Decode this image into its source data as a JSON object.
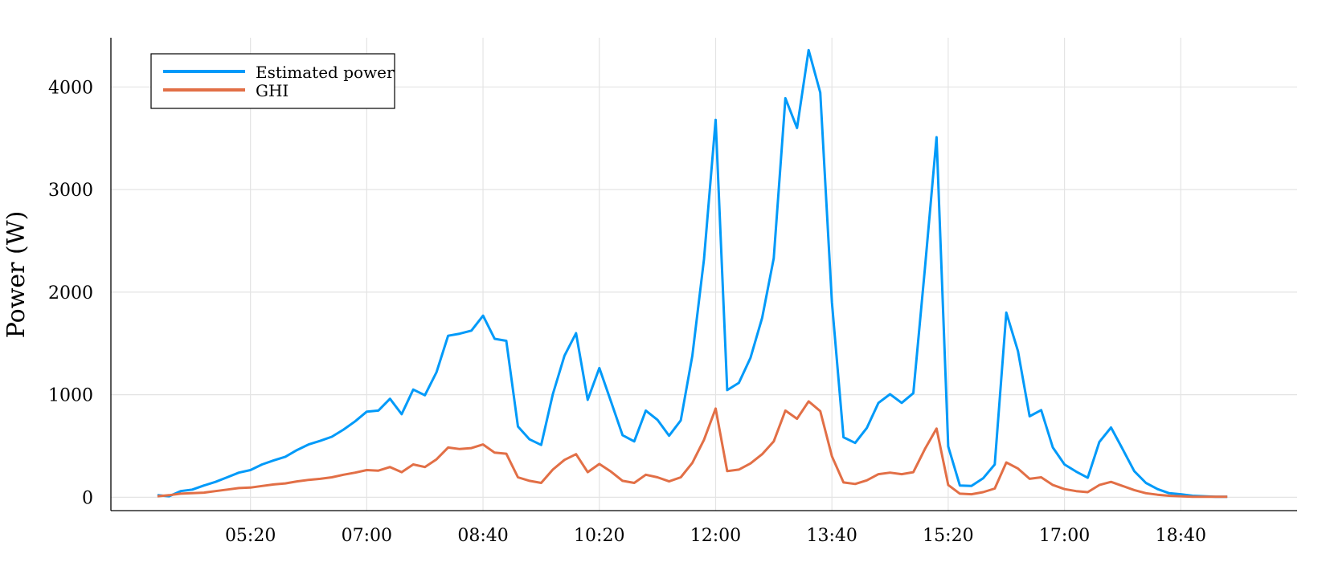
{
  "chart_data": {
    "type": "line",
    "title": "",
    "xlabel": "",
    "ylabel": "Power (W)",
    "ylim": [
      -130,
      4480
    ],
    "xlim": [
      "03:20",
      "20:20"
    ],
    "grid": true,
    "legend_position": "top-left",
    "xticks": [
      "05:20",
      "07:00",
      "08:40",
      "10:20",
      "12:00",
      "13:40",
      "15:20",
      "17:00",
      "18:40"
    ],
    "yticks": [
      0,
      1000,
      2000,
      3000,
      4000
    ],
    "x": [
      "04:00",
      "04:10",
      "04:20",
      "04:30",
      "04:40",
      "04:50",
      "05:00",
      "05:10",
      "05:20",
      "05:30",
      "05:40",
      "05:50",
      "06:00",
      "06:10",
      "06:20",
      "06:30",
      "06:40",
      "06:50",
      "07:00",
      "07:10",
      "07:20",
      "07:30",
      "07:40",
      "07:50",
      "08:00",
      "08:10",
      "08:20",
      "08:30",
      "08:40",
      "08:50",
      "09:00",
      "09:10",
      "09:20",
      "09:30",
      "09:40",
      "09:50",
      "10:00",
      "10:10",
      "10:20",
      "10:30",
      "10:40",
      "10:50",
      "11:00",
      "11:10",
      "11:20",
      "11:30",
      "11:40",
      "11:50",
      "12:00",
      "12:10",
      "12:20",
      "12:30",
      "12:40",
      "12:50",
      "13:00",
      "13:10",
      "13:20",
      "13:30",
      "13:40",
      "13:50",
      "14:00",
      "14:10",
      "14:20",
      "14:30",
      "14:40",
      "14:50",
      "15:00",
      "15:10",
      "15:20",
      "15:30",
      "15:40",
      "15:50",
      "16:00",
      "16:10",
      "16:20",
      "16:30",
      "16:40",
      "16:50",
      "17:00",
      "17:10",
      "17:20",
      "17:30",
      "17:40",
      "17:50",
      "18:00",
      "18:10",
      "18:20",
      "18:30",
      "18:40",
      "18:50",
      "19:00",
      "19:10",
      "19:20"
    ],
    "series": [
      {
        "name": "Estimated power",
        "color": "#009af9",
        "values": [
          20,
          10,
          60,
          75,
          115,
          150,
          195,
          240,
          265,
          320,
          360,
          395,
          460,
          515,
          550,
          590,
          660,
          740,
          835,
          845,
          960,
          810,
          1050,
          995,
          1220,
          1575,
          1595,
          1625,
          1770,
          1545,
          1525,
          690,
          565,
          510,
          1005,
          1380,
          1600,
          950,
          1260,
          935,
          605,
          545,
          845,
          755,
          600,
          750,
          1380,
          2320,
          3680,
          1045,
          1115,
          1360,
          1750,
          2330,
          3890,
          3600,
          4360,
          3945,
          1900,
          585,
          530,
          675,
          920,
          1005,
          920,
          1015,
          2230,
          3510,
          495,
          115,
          110,
          185,
          320,
          1800,
          1425,
          790,
          850,
          485,
          320,
          250,
          190,
          540,
          680,
          470,
          255,
          140,
          80,
          40,
          30,
          15,
          10,
          5,
          5
        ]
      },
      {
        "name": "GHI",
        "color": "#e26f46",
        "values": [
          10,
          20,
          35,
          40,
          45,
          60,
          75,
          90,
          95,
          110,
          125,
          135,
          155,
          170,
          180,
          195,
          220,
          240,
          265,
          260,
          295,
          245,
          320,
          295,
          370,
          485,
          470,
          480,
          515,
          435,
          425,
          195,
          160,
          140,
          270,
          365,
          420,
          245,
          325,
          250,
          160,
          140,
          220,
          195,
          155,
          195,
          335,
          560,
          865,
          255,
          270,
          330,
          420,
          545,
          845,
          765,
          935,
          840,
          400,
          145,
          130,
          165,
          225,
          240,
          225,
          245,
          470,
          670,
          120,
          35,
          30,
          50,
          85,
          340,
          280,
          180,
          195,
          120,
          80,
          60,
          50,
          120,
          150,
          110,
          70,
          40,
          25,
          15,
          10,
          5,
          5,
          5,
          5
        ]
      }
    ]
  }
}
